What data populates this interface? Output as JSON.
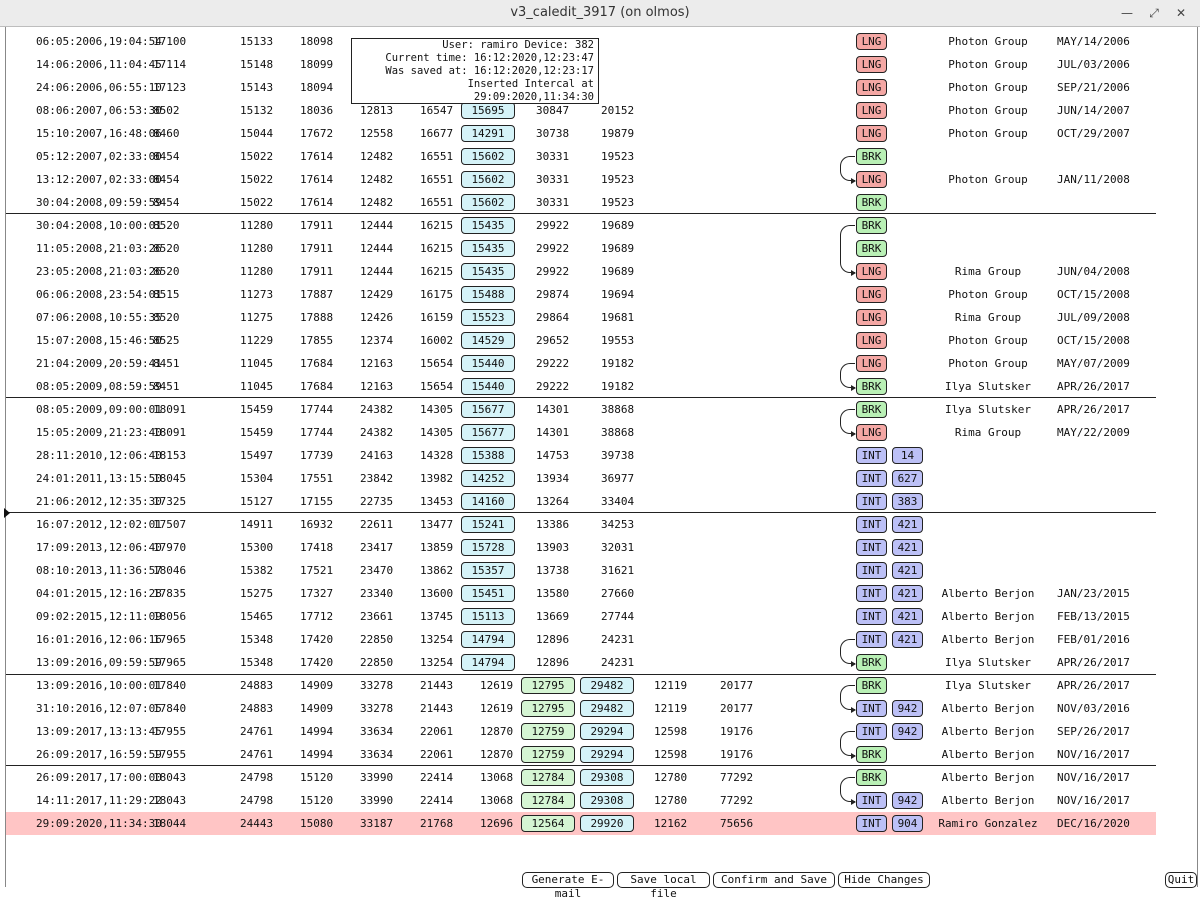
{
  "window": {
    "title": "v3_caledit_3917 (on olmos)",
    "min_icon": "minimize-icon",
    "max_icon": "maximize-icon",
    "close_icon": "close-icon"
  },
  "colors": {
    "lng": "#f4a7a4",
    "brk": "#b9f0b5",
    "int": "#bcc0f6",
    "box_cyan": "#d5f3f8",
    "box_green": "#d5f5d3",
    "highlight": "#ffc5c5"
  },
  "tooltip": {
    "user_line": "User: ramiro Device: 382",
    "current_time": "Current time: 16:12:2020,12:23:47",
    "saved_at": "Was saved at: 16:12:2020,12:23:17",
    "inserted": "Inserted Intercal at 29:09:2020,11:34:30"
  },
  "rows": [
    {
      "ts": "06:05:2006,19:04:54",
      "n1": "17100",
      "n2": "15133",
      "n3": "18098",
      "n4": "",
      "n5": "",
      "b1": "",
      "n6": "",
      "n7": "",
      "tag": "LNG",
      "tagnum": "",
      "group": "Photon Group",
      "date": "MAY/14/2006"
    },
    {
      "ts": "14:06:2006,11:04:45",
      "n1": "17114",
      "n2": "15148",
      "n3": "18099",
      "n4": "",
      "n5": "",
      "b1": "",
      "n6": "",
      "n7": "",
      "tag": "LNG",
      "tagnum": "",
      "group": "Photon Group",
      "date": "JUL/03/2006"
    },
    {
      "ts": "24:06:2006,06:55:10",
      "n1": "17123",
      "n2": "15143",
      "n3": "18094",
      "n4": "",
      "n5": "",
      "b1": "",
      "n6": "",
      "n7": "",
      "tag": "LNG",
      "tagnum": "",
      "group": "Photon Group",
      "date": "SEP/21/2006"
    },
    {
      "ts": "08:06:2007,06:53:30",
      "n1": "8502",
      "n2": "15132",
      "n3": "18036",
      "n4": "12813",
      "n5": "16547",
      "b1": "15695",
      "n6": "30847",
      "n7": "20152",
      "tag": "LNG",
      "tagnum": "",
      "group": "Photon Group",
      "date": "JUN/14/2007"
    },
    {
      "ts": "15:10:2007,16:48:06",
      "n1": "8460",
      "n2": "15044",
      "n3": "17672",
      "n4": "12558",
      "n5": "16677",
      "b1": "14291",
      "n6": "30738",
      "n7": "19879",
      "tag": "LNG",
      "tagnum": "",
      "group": "Photon Group",
      "date": "OCT/29/2007"
    },
    {
      "ts": "05:12:2007,02:33:00",
      "n1": "8454",
      "n2": "15022",
      "n3": "17614",
      "n4": "12482",
      "n5": "16551",
      "b1": "15602",
      "n6": "30331",
      "n7": "19523",
      "tag": "BRK",
      "tagnum": "",
      "group": "",
      "date": ""
    },
    {
      "ts": "13:12:2007,02:33:00",
      "n1": "8454",
      "n2": "15022",
      "n3": "17614",
      "n4": "12482",
      "n5": "16551",
      "b1": "15602",
      "n6": "30331",
      "n7": "19523",
      "tag": "LNG",
      "tagnum": "",
      "group": "Photon Group",
      "date": "JAN/11/2008"
    },
    {
      "ts": "30:04:2008,09:59:59",
      "n1": "8454",
      "n2": "15022",
      "n3": "17614",
      "n4": "12482",
      "n5": "16551",
      "b1": "15602",
      "n6": "30331",
      "n7": "19523",
      "tag": "BRK",
      "tagnum": "",
      "group": "",
      "date": ""
    },
    {
      "ts": "30:04:2008,10:00:01",
      "n1": "8520",
      "n2": "11280",
      "n3": "17911",
      "n4": "12444",
      "n5": "16215",
      "b1": "15435",
      "n6": "29922",
      "n7": "19689",
      "tag": "BRK",
      "tagnum": "",
      "group": "",
      "date": ""
    },
    {
      "ts": "11:05:2008,21:03:26",
      "n1": "8520",
      "n2": "11280",
      "n3": "17911",
      "n4": "12444",
      "n5": "16215",
      "b1": "15435",
      "n6": "29922",
      "n7": "19689",
      "tag": "BRK",
      "tagnum": "",
      "group": "",
      "date": ""
    },
    {
      "ts": "23:05:2008,21:03:26",
      "n1": "8520",
      "n2": "11280",
      "n3": "17911",
      "n4": "12444",
      "n5": "16215",
      "b1": "15435",
      "n6": "29922",
      "n7": "19689",
      "tag": "LNG",
      "tagnum": "",
      "group": "Rima Group",
      "date": "JUN/04/2008"
    },
    {
      "ts": "06:06:2008,23:54:01",
      "n1": "8515",
      "n2": "11273",
      "n3": "17887",
      "n4": "12429",
      "n5": "16175",
      "b1": "15488",
      "n6": "29874",
      "n7": "19694",
      "tag": "LNG",
      "tagnum": "",
      "group": "Photon Group",
      "date": "OCT/15/2008"
    },
    {
      "ts": "07:06:2008,10:55:35",
      "n1": "8520",
      "n2": "11275",
      "n3": "17888",
      "n4": "12426",
      "n5": "16159",
      "b1": "15523",
      "n6": "29864",
      "n7": "19681",
      "tag": "LNG",
      "tagnum": "",
      "group": "Rima Group",
      "date": "JUL/09/2008"
    },
    {
      "ts": "15:07:2008,15:46:50",
      "n1": "8525",
      "n2": "11229",
      "n3": "17855",
      "n4": "12374",
      "n5": "16002",
      "b1": "14529",
      "n6": "29652",
      "n7": "19553",
      "tag": "LNG",
      "tagnum": "",
      "group": "Photon Group",
      "date": "OCT/15/2008"
    },
    {
      "ts": "21:04:2009,20:59:41",
      "n1": "8451",
      "n2": "11045",
      "n3": "17684",
      "n4": "12163",
      "n5": "15654",
      "b1": "15440",
      "n6": "29222",
      "n7": "19182",
      "tag": "LNG",
      "tagnum": "",
      "group": "Photon Group",
      "date": "MAY/07/2009"
    },
    {
      "ts": "08:05:2009,08:59:59",
      "n1": "8451",
      "n2": "11045",
      "n3": "17684",
      "n4": "12163",
      "n5": "15654",
      "b1": "15440",
      "n6": "29222",
      "n7": "19182",
      "tag": "BRK",
      "tagnum": "",
      "group": "Ilya Slutsker",
      "date": "APR/26/2017"
    },
    {
      "ts": "08:05:2009,09:00:01",
      "n1": "18091",
      "n2": "15459",
      "n3": "17744",
      "n4": "24382",
      "n5": "14305",
      "b1": "15677",
      "n6": "14301",
      "n7": "38868",
      "tag": "BRK",
      "tagnum": "",
      "group": "Ilya Slutsker",
      "date": "APR/26/2017"
    },
    {
      "ts": "15:05:2009,21:23:40",
      "n1": "18091",
      "n2": "15459",
      "n3": "17744",
      "n4": "24382",
      "n5": "14305",
      "b1": "15677",
      "n6": "14301",
      "n7": "38868",
      "tag": "LNG",
      "tagnum": "",
      "group": "Rima Group",
      "date": "MAY/22/2009"
    },
    {
      "ts": "28:11:2010,12:06:40",
      "n1": "18153",
      "n2": "15497",
      "n3": "17739",
      "n4": "24163",
      "n5": "14328",
      "b1": "15388",
      "n6": "14753",
      "n7": "39738",
      "tag": "INT",
      "tagnum": "14",
      "group": "",
      "date": ""
    },
    {
      "ts": "24:01:2011,13:15:50",
      "n1": "18045",
      "n2": "15304",
      "n3": "17551",
      "n4": "23842",
      "n5": "13982",
      "b1": "14252",
      "n6": "13934",
      "n7": "36977",
      "tag": "INT",
      "tagnum": "627",
      "group": "",
      "date": ""
    },
    {
      "ts": "21:06:2012,12:35:30",
      "n1": "17325",
      "n2": "15127",
      "n3": "17155",
      "n4": "22735",
      "n5": "13453",
      "b1": "14160",
      "n6": "13264",
      "n7": "33404",
      "tag": "INT",
      "tagnum": "383",
      "group": "",
      "date": ""
    },
    {
      "ts": "16:07:2012,12:02:01",
      "n1": "17507",
      "n2": "14911",
      "n3": "16932",
      "n4": "22611",
      "n5": "13477",
      "b1": "15241",
      "n6": "13386",
      "n7": "34253",
      "tag": "INT",
      "tagnum": "421",
      "group": "",
      "date": ""
    },
    {
      "ts": "17:09:2013,12:06:40",
      "n1": "17970",
      "n2": "15300",
      "n3": "17418",
      "n4": "23417",
      "n5": "13859",
      "b1": "15728",
      "n6": "13903",
      "n7": "32031",
      "tag": "INT",
      "tagnum": "421",
      "group": "",
      "date": ""
    },
    {
      "ts": "08:10:2013,11:36:57",
      "n1": "18046",
      "n2": "15382",
      "n3": "17521",
      "n4": "23470",
      "n5": "13862",
      "b1": "15357",
      "n6": "13738",
      "n7": "31621",
      "tag": "INT",
      "tagnum": "421",
      "group": "",
      "date": ""
    },
    {
      "ts": "04:01:2015,12:16:28",
      "n1": "17835",
      "n2": "15275",
      "n3": "17327",
      "n4": "23340",
      "n5": "13600",
      "b1": "15451",
      "n6": "13580",
      "n7": "27660",
      "tag": "INT",
      "tagnum": "421",
      "group": "Alberto Berjon",
      "date": "JAN/23/2015"
    },
    {
      "ts": "09:02:2015,12:11:09",
      "n1": "18056",
      "n2": "15465",
      "n3": "17712",
      "n4": "23661",
      "n5": "13745",
      "b1": "15113",
      "n6": "13669",
      "n7": "27744",
      "tag": "INT",
      "tagnum": "421",
      "group": "Alberto Berjon",
      "date": "FEB/13/2015"
    },
    {
      "ts": "16:01:2016,12:06:16",
      "n1": "17965",
      "n2": "15348",
      "n3": "17420",
      "n4": "22850",
      "n5": "13254",
      "b1": "14794",
      "n6": "12896",
      "n7": "24231",
      "tag": "INT",
      "tagnum": "421",
      "group": "Alberto Berjon",
      "date": "FEB/01/2016"
    },
    {
      "ts": "13:09:2016,09:59:59",
      "n1": "17965",
      "n2": "15348",
      "n3": "17420",
      "n4": "22850",
      "n5": "13254",
      "b1": "14794",
      "n6": "12896",
      "n7": "24231",
      "tag": "BRK",
      "tagnum": "",
      "group": "Ilya Slutsker",
      "date": "APR/26/2017"
    },
    {
      "ts": "13:09:2016,10:00:01",
      "n1": "17840",
      "n2": "24883",
      "n3": "14909",
      "n4": "33278",
      "n5": "21443",
      "n6a": "12619",
      "b2": "12795",
      "b3": "29482",
      "n8": "12119",
      "n9": "20177",
      "tag": "BRK",
      "tagnum": "",
      "group": "Ilya Slutsker",
      "date": "APR/26/2017"
    },
    {
      "ts": "31:10:2016,12:07:05",
      "n1": "17840",
      "n2": "24883",
      "n3": "14909",
      "n4": "33278",
      "n5": "21443",
      "n6a": "12619",
      "b2": "12795",
      "b3": "29482",
      "n8": "12119",
      "n9": "20177",
      "tag": "INT",
      "tagnum": "942",
      "group": "Alberto Berjon",
      "date": "NOV/03/2016"
    },
    {
      "ts": "13:09:2017,13:13:45",
      "n1": "17955",
      "n2": "24761",
      "n3": "14994",
      "n4": "33634",
      "n5": "22061",
      "n6a": "12870",
      "b2": "12759",
      "b3": "29294",
      "n8": "12598",
      "n9": "19176",
      "tag": "INT",
      "tagnum": "942",
      "group": "Alberto Berjon",
      "date": "SEP/26/2017"
    },
    {
      "ts": "26:09:2017,16:59:59",
      "n1": "17955",
      "n2": "24761",
      "n3": "14994",
      "n4": "33634",
      "n5": "22061",
      "n6a": "12870",
      "b2": "12759",
      "b3": "29294",
      "n8": "12598",
      "n9": "19176",
      "tag": "BRK",
      "tagnum": "",
      "group": "Alberto Berjon",
      "date": "NOV/16/2017"
    },
    {
      "ts": "26:09:2017,17:00:00",
      "n1": "18043",
      "n2": "24798",
      "n3": "15120",
      "n4": "33990",
      "n5": "22414",
      "n6a": "13068",
      "b2": "12784",
      "b3": "29308",
      "n8": "12780",
      "n9": "77292",
      "tag": "BRK",
      "tagnum": "",
      "group": "Alberto Berjon",
      "date": "NOV/16/2017"
    },
    {
      "ts": "14:11:2017,11:29:22",
      "n1": "18043",
      "n2": "24798",
      "n3": "15120",
      "n4": "33990",
      "n5": "22414",
      "n6a": "13068",
      "b2": "12784",
      "b3": "29308",
      "n8": "12780",
      "n9": "77292",
      "tag": "INT",
      "tagnum": "942",
      "group": "Alberto Berjon",
      "date": "NOV/16/2017"
    },
    {
      "ts": "29:09:2020,11:34:30",
      "n1": "18044",
      "n2": "24443",
      "n3": "15080",
      "n4": "33187",
      "n5": "21768",
      "n6a": "12696",
      "b2": "12564",
      "b3": "29920",
      "n8": "12162",
      "n9": "75656",
      "tag": "INT",
      "tagnum": "904",
      "group": "Ramiro Gonzalez",
      "date": "DEC/16/2020",
      "highlight": true
    }
  ],
  "buttons": {
    "email": "Generate E-mail",
    "save_local": "Save local file",
    "confirm": "Confirm and Save",
    "hide": "Hide Changes",
    "quit": "Quit"
  }
}
